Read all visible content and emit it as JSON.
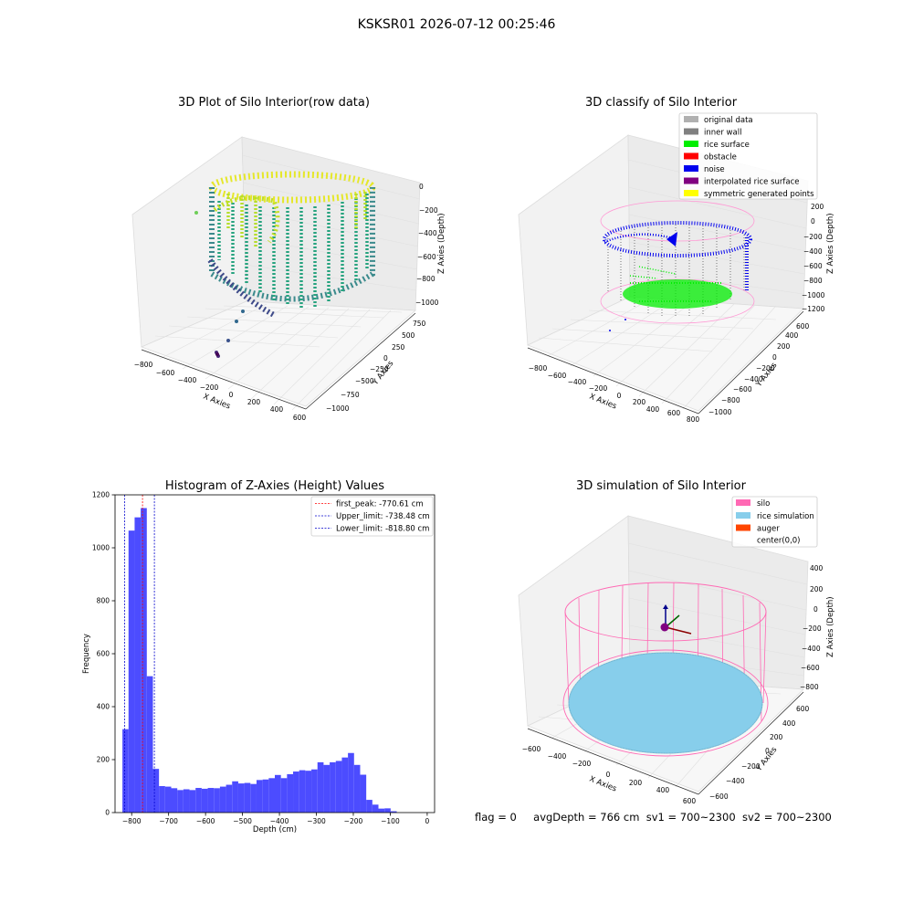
{
  "suptitle": "KSKSR01 2026-07-12 00:25:46",
  "footer": {
    "flag": "flag = 0",
    "avg_depth": "avgDepth = 766 cm",
    "sv1": "sv1 = 700~2300",
    "sv2": "sv2 = 700~2300"
  },
  "colors": {
    "hist_bar": "#4c4cff",
    "first_peak": "#ff0000",
    "limit": "#0000cc",
    "silo": "#ff69b4",
    "rice_simulation": "#87ceeb",
    "auger": "#ff4500"
  },
  "chart_data": [
    {
      "type": "scatter",
      "projection": "3d",
      "title": "3D Plot of Silo Interior(row data)",
      "xlabel": "X Axies",
      "ylabel": "Y Axies",
      "zlabel": "Z Axies (Depth)",
      "x_ticks": [
        "−800",
        "−600",
        "−400",
        "−200",
        "0",
        "200",
        "400",
        "600"
      ],
      "y_ticks": [
        "−1000",
        "−750",
        "−500",
        "−250",
        "0",
        "250",
        "500",
        "750"
      ],
      "z_ticks": [
        "−1000",
        "−800",
        "−600",
        "−400",
        "−200",
        "0"
      ],
      "colormap": "viridis"
    },
    {
      "type": "scatter",
      "projection": "3d",
      "title": "3D classify of Silo Interior",
      "xlabel": "X Axies",
      "ylabel": "Y Axies",
      "zlabel": "Z Axies (Depth)",
      "x_ticks": [
        "−800",
        "−600",
        "−400",
        "−200",
        "0",
        "200",
        "400",
        "600",
        "800"
      ],
      "y_ticks": [
        "−1000",
        "−800",
        "−600",
        "−400",
        "−200",
        "0",
        "200",
        "400",
        "600"
      ],
      "z_ticks": [
        "−1200",
        "−1000",
        "−800",
        "−600",
        "−400",
        "−200",
        "0",
        "200"
      ],
      "legend": [
        {
          "label": "original data",
          "color": "#b0b0b0"
        },
        {
          "label": "inner wall",
          "color": "#808080"
        },
        {
          "label": "rice surface",
          "color": "#00ee00"
        },
        {
          "label": "obstacle",
          "color": "#ff0000"
        },
        {
          "label": "noise",
          "color": "#0000ee"
        },
        {
          "label": "interpolated rice surface",
          "color": "#800080"
        },
        {
          "label": "symmetric generated points",
          "color": "#ffff00"
        }
      ],
      "legend_position": "top-right"
    },
    {
      "type": "bar",
      "title": "Histogram of Z-Axies (Height) Values",
      "xlabel": "Depth (cm)",
      "ylabel": "Frequency",
      "xlim": [
        -845,
        20
      ],
      "ylim": [
        0,
        1200
      ],
      "x_ticks": [
        -800,
        -700,
        -600,
        -500,
        -400,
        -300,
        -200,
        -100,
        0
      ],
      "x_tick_labels": [
        "−800",
        "−700",
        "−600",
        "−500",
        "−400",
        "−300",
        "−200",
        "−100",
        "0"
      ],
      "y_ticks": [
        0,
        200,
        400,
        600,
        800,
        1000,
        1200
      ],
      "y_tick_labels": [
        "0",
        "200",
        "400",
        "600",
        "800",
        "1000",
        "1200"
      ],
      "bin_start": -825,
      "bin_width": 16.5,
      "values": [
        315,
        1065,
        1115,
        1150,
        515,
        165,
        100,
        98,
        92,
        85,
        88,
        85,
        93,
        90,
        93,
        92,
        98,
        105,
        118,
        110,
        112,
        108,
        123,
        125,
        130,
        142,
        130,
        145,
        155,
        160,
        158,
        163,
        190,
        180,
        190,
        195,
        208,
        225,
        180,
        143,
        48,
        30,
        15,
        16,
        5
      ],
      "reference_lines": [
        {
          "label": "first_peak: -770.61 cm",
          "value": -770.61,
          "color": "#ff0000"
        },
        {
          "label": "Upper_limit: -738.48 cm",
          "value": -738.48,
          "color": "#0000cc"
        },
        {
          "label": "Lower_limit: -818.80 cm",
          "value": -818.8,
          "color": "#0000cc"
        }
      ],
      "legend_position": "top-right"
    },
    {
      "type": "scatter",
      "projection": "3d",
      "title": "3D simulation of Silo Interior",
      "xlabel": "X Axies",
      "ylabel": "Y Axies",
      "zlabel": "Z Axies (Depth)",
      "x_ticks": [
        "−600",
        "−400",
        "−200",
        "0",
        "200",
        "400",
        "600"
      ],
      "y_ticks": [
        "−600",
        "−400",
        "−200",
        "0",
        "200",
        "400",
        "600"
      ],
      "z_ticks": [
        "−800",
        "−600",
        "−400",
        "−200",
        "0",
        "200",
        "400"
      ],
      "legend": [
        {
          "label": "silo",
          "color": "#ff69b4"
        },
        {
          "label": "rice simulation",
          "color": "#87ceeb"
        },
        {
          "label": "auger",
          "color": "#ff4500"
        },
        {
          "label": "center(0,0)",
          "color": ""
        }
      ],
      "legend_position": "top-right"
    }
  ]
}
